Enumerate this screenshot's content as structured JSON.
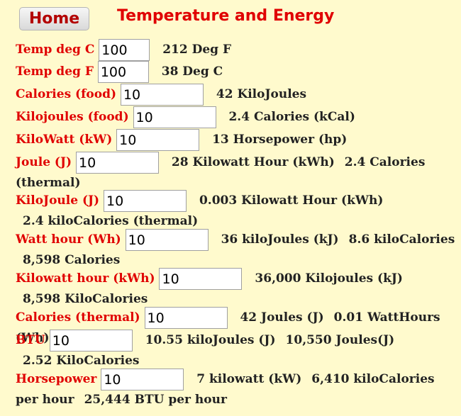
{
  "home_label": "Home",
  "page_title": "Temperature and Energy",
  "rows": [
    {
      "label": "Temp deg C",
      "value": "100",
      "results": [
        "212 Deg F"
      ]
    },
    {
      "label": "Temp deg F",
      "value": "100",
      "results": [
        "38 Deg C"
      ]
    },
    {
      "label": "Calories (food)",
      "value": "10",
      "results": [
        "42 KiloJoules"
      ]
    },
    {
      "label": "Kilojoules (food)",
      "value": "10",
      "results": [
        "2.4 Calories (kCal)"
      ]
    },
    {
      "label": "KiloWatt (kW)",
      "value": "10",
      "results": [
        "13 Horsepower (hp)"
      ]
    },
    {
      "label": "Joule (J)",
      "value": "10",
      "results": [
        "28 Kilowatt Hour (kWh)",
        "2.4 Calories (thermal)"
      ]
    },
    {
      "label": "KiloJoule (J)",
      "value": "10",
      "results": [
        "0.003 Kilowatt Hour (kWh)",
        "2.4 kiloCalories (thermal)"
      ]
    },
    {
      "label": "Watt hour (Wh)",
      "value": "10",
      "results": [
        "36 kiloJoules (kJ)",
        "8.6 kiloCalories",
        "8,598 Calories"
      ]
    },
    {
      "label": "Kilowatt hour (kWh)",
      "value": "10",
      "results": [
        "36,000 Kilojoules (kJ)",
        "8,598 KiloCalories"
      ]
    },
    {
      "label": "Calories (thermal)",
      "value": "10",
      "results": [
        "42 Joules (J)",
        "0.01 WattHours (Wh)"
      ]
    },
    {
      "label": "BTU",
      "value": "10",
      "results": [
        "10.55 kiloJoules (J)",
        "10,550 Joules(J)",
        "2.52 KiloCalories"
      ]
    },
    {
      "label": "Horsepower",
      "value": "10",
      "results": [
        "7 kilowatt (kW)",
        "6,410 kiloCalories per hour",
        "25,444 BTU per hour"
      ]
    }
  ]
}
